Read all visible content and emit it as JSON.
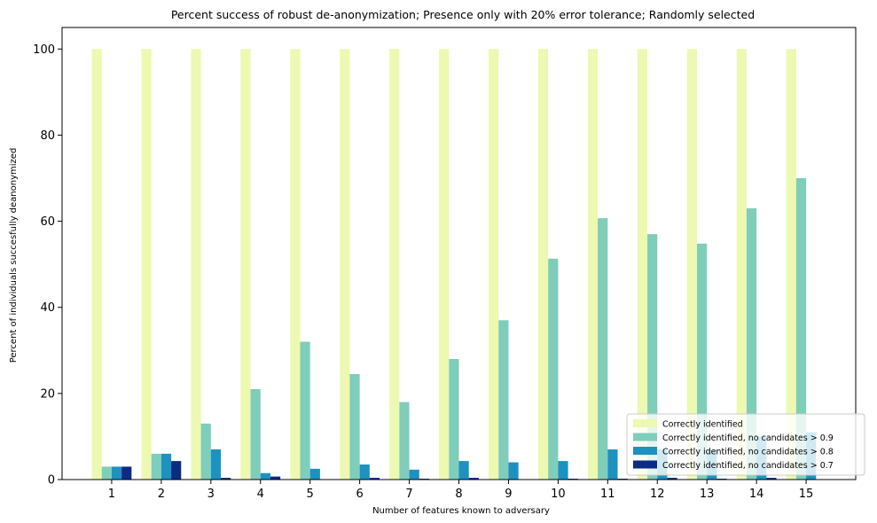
{
  "chart_data": {
    "type": "bar",
    "title": "Percent success of robust de-anonymization; Presence only with 20% error tolerance; Randomly selected",
    "xlabel": "Number of features known to adversary",
    "ylabel": "Percent of individuals succesfully deanonymized",
    "categories": [
      "1",
      "2",
      "3",
      "4",
      "5",
      "6",
      "7",
      "8",
      "9",
      "10",
      "11",
      "12",
      "13",
      "14",
      "15"
    ],
    "ylim": [
      0,
      105
    ],
    "yticks": [
      0,
      20,
      40,
      60,
      80,
      100
    ],
    "grid": false,
    "legend_position": "lower-right",
    "series": [
      {
        "name": "Correctly identified",
        "color": "#edf8b1",
        "values": [
          100,
          100,
          100,
          100,
          100,
          100,
          100,
          100,
          100,
          100,
          100,
          100,
          100,
          100,
          100
        ]
      },
      {
        "name": "Correctly identified, no candidates > 0.9",
        "color": "#7fcdbb",
        "values": [
          3,
          6,
          13,
          21,
          32,
          24.5,
          18,
          28,
          37,
          51.3,
          60.7,
          57,
          54.8,
          63,
          70
        ]
      },
      {
        "name": "Correctly identified, no candidates > 0.8",
        "color": "#1d91c0",
        "values": [
          3,
          6,
          7,
          1.5,
          2.5,
          3.5,
          2.3,
          4.3,
          4,
          4.3,
          7,
          7,
          7,
          10,
          11
        ]
      },
      {
        "name": "Correctly identified, no candidates > 0.7",
        "color": "#0c2c84",
        "values": [
          3,
          4.3,
          0.4,
          0.7,
          0,
          0.4,
          0.2,
          0.4,
          0,
          0.2,
          0.2,
          0.4,
          0.2,
          0.4,
          0
        ]
      }
    ]
  }
}
